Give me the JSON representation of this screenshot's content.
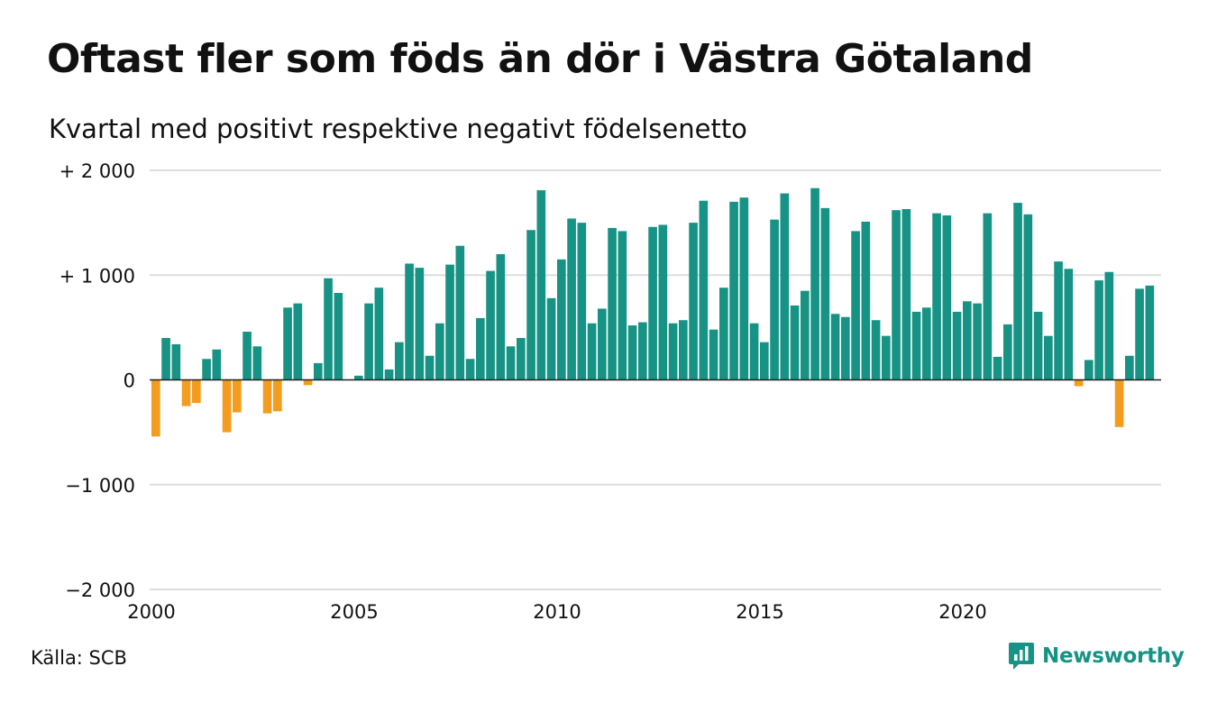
{
  "title": "Oftast fler som föds än dör i Västra Götaland",
  "subtitle": "Kvartal med positivt respektive negativt födelsenetto",
  "source": "Källa: SCB",
  "brand": "Newsworthy",
  "colors": {
    "positive": "#169384",
    "negative": "#f39c1e",
    "grid": "#dddddd",
    "brand": "#169384"
  },
  "chart_data": {
    "type": "bar",
    "x_start": 2000,
    "x_labels": [
      "2000",
      "2005",
      "2010",
      "2015",
      "2020"
    ],
    "y_ticks": [
      {
        "value": 2000,
        "label": "+ 2 000"
      },
      {
        "value": 1000,
        "label": "+ 1 000"
      },
      {
        "value": 0,
        "label": "0"
      },
      {
        "value": -1000,
        "label": "−1 000"
      },
      {
        "value": -2000,
        "label": "−2 000"
      }
    ],
    "ylim": [
      -2000,
      2000
    ],
    "grid": true,
    "values": [
      -540,
      400,
      340,
      -250,
      -220,
      200,
      290,
      -500,
      -310,
      460,
      320,
      -320,
      -300,
      690,
      730,
      -50,
      160,
      970,
      830,
      0,
      40,
      730,
      880,
      100,
      360,
      1110,
      1070,
      230,
      540,
      1100,
      1280,
      200,
      590,
      1040,
      1200,
      320,
      400,
      1430,
      1810,
      780,
      1150,
      1540,
      1500,
      540,
      680,
      1450,
      1420,
      520,
      550,
      1460,
      1480,
      540,
      570,
      1500,
      1710,
      480,
      880,
      1700,
      1740,
      540,
      360,
      1530,
      1780,
      710,
      850,
      1830,
      1640,
      630,
      600,
      1420,
      1510,
      570,
      420,
      1620,
      1630,
      650,
      690,
      1590,
      1570,
      650,
      750,
      730,
      1590,
      220,
      530,
      1690,
      1580,
      650,
      420,
      1130,
      1060,
      -60,
      190,
      950,
      1030,
      -450,
      230,
      870,
      900
    ]
  }
}
